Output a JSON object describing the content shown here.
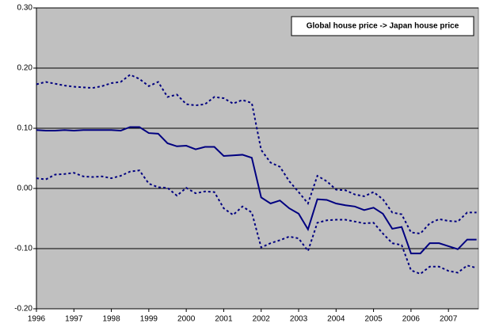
{
  "chart_data": {
    "type": "line",
    "title": "Global house price -> Japan house price",
    "x": [
      1996,
      1996.25,
      1996.5,
      1996.75,
      1997,
      1997.25,
      1997.5,
      1997.75,
      1998,
      1998.25,
      1998.5,
      1998.75,
      1999,
      1999.25,
      1999.5,
      1999.75,
      2000,
      2000.25,
      2000.5,
      2000.75,
      2001,
      2001.25,
      2001.5,
      2001.75,
      2002,
      2002.25,
      2002.5,
      2002.75,
      2003,
      2003.25,
      2003.5,
      2003.75,
      2004,
      2004.25,
      2004.5,
      2004.75,
      2005,
      2005.25,
      2005.5,
      2005.75,
      2006,
      2006.25,
      2006.5,
      2006.75,
      2007,
      2007.25,
      2007.5,
      2007.75
    ],
    "series": [
      {
        "color": "#000080",
        "dashed": false,
        "values": [
          0.097,
          0.096,
          0.096,
          0.097,
          0.096,
          0.097,
          0.097,
          0.097,
          0.097,
          0.096,
          0.102,
          0.102,
          0.092,
          0.091,
          0.075,
          0.07,
          0.071,
          0.065,
          0.069,
          0.069,
          0.054,
          0.055,
          0.056,
          0.051,
          -0.015,
          -0.025,
          -0.02,
          -0.033,
          -0.042,
          -0.068,
          -0.018,
          -0.019,
          -0.025,
          -0.028,
          -0.03,
          -0.036,
          -0.032,
          -0.042,
          -0.067,
          -0.064,
          -0.108,
          -0.108,
          -0.091,
          -0.091,
          -0.096,
          -0.101,
          -0.085,
          -0.085
        ]
      },
      {
        "color": "#000080",
        "dashed": true,
        "values": [
          0.173,
          0.177,
          0.174,
          0.171,
          0.169,
          0.168,
          0.167,
          0.17,
          0.175,
          0.177,
          0.189,
          0.182,
          0.17,
          0.177,
          0.152,
          0.156,
          0.14,
          0.138,
          0.14,
          0.152,
          0.15,
          0.141,
          0.147,
          0.142,
          0.064,
          0.043,
          0.036,
          0.012,
          -0.006,
          -0.025,
          0.021,
          0.012,
          -0.002,
          -0.003,
          -0.01,
          -0.013,
          -0.006,
          -0.018,
          -0.04,
          -0.043,
          -0.073,
          -0.075,
          -0.058,
          -0.051,
          -0.054,
          -0.055,
          -0.04,
          -0.04
        ]
      },
      {
        "color": "#000080",
        "dashed": true,
        "values": [
          0.017,
          0.015,
          0.023,
          0.024,
          0.026,
          0.02,
          0.019,
          0.02,
          0.017,
          0.021,
          0.028,
          0.03,
          0.008,
          0.002,
          0.001,
          -0.012,
          0.001,
          -0.008,
          -0.005,
          -0.006,
          -0.033,
          -0.044,
          -0.03,
          -0.04,
          -0.098,
          -0.091,
          -0.086,
          -0.08,
          -0.083,
          -0.104,
          -0.057,
          -0.053,
          -0.052,
          -0.052,
          -0.055,
          -0.058,
          -0.057,
          -0.075,
          -0.091,
          -0.094,
          -0.136,
          -0.142,
          -0.13,
          -0.13,
          -0.137,
          -0.14,
          -0.128,
          -0.132
        ]
      }
    ],
    "xlim": [
      1996,
      2007.8
    ],
    "xticks": [
      1996,
      1997,
      1998,
      1999,
      2000,
      2001,
      2002,
      2003,
      2004,
      2005,
      2006,
      2007
    ],
    "ylim": [
      -0.2,
      0.3
    ],
    "yticks": [
      {
        "value": -0.2,
        "label": "-0.20"
      },
      {
        "value": -0.1,
        "label": "-0.10"
      },
      {
        "value": 0,
        "label": "0.00"
      },
      {
        "value": 0.1,
        "label": "0.10"
      },
      {
        "value": 0.2,
        "label": "0.20"
      },
      {
        "value": 0.3,
        "label": "0.30"
      }
    ],
    "grid": true,
    "plot_background": "#c0c0c0"
  }
}
